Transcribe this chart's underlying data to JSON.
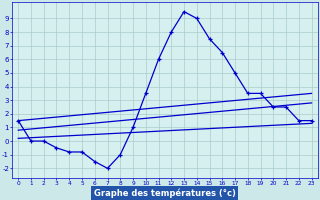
{
  "title": "Graphe des températures (°c)",
  "background_color": "#cce8e8",
  "plot_bg_color": "#d6f0f0",
  "grid_color": "#aacccc",
  "line_color": "#0000cc",
  "xlabel_bg": "#2255aa",
  "xlabel_fg": "#ffffff",
  "xlim": [
    -0.5,
    23.5
  ],
  "ylim": [
    -2.7,
    10.2
  ],
  "yticks": [
    -2,
    -1,
    0,
    1,
    2,
    3,
    4,
    5,
    6,
    7,
    8,
    9
  ],
  "xticks": [
    0,
    1,
    2,
    3,
    4,
    5,
    6,
    7,
    8,
    9,
    10,
    11,
    12,
    13,
    14,
    15,
    16,
    17,
    18,
    19,
    20,
    21,
    22,
    23
  ],
  "main_series": {
    "x": [
      0,
      1,
      2,
      3,
      4,
      5,
      6,
      7,
      8,
      9,
      10,
      11,
      12,
      13,
      14,
      15,
      16,
      17,
      18,
      19,
      20,
      21,
      22,
      23
    ],
    "y": [
      1.5,
      0.0,
      0.0,
      -0.5,
      -0.8,
      -0.8,
      -1.5,
      -2.0,
      -1.0,
      1.0,
      3.5,
      6.0,
      8.0,
      9.5,
      9.0,
      7.5,
      6.5,
      5.0,
      3.5,
      3.5,
      2.5,
      2.5,
      1.5,
      1.5
    ]
  },
  "ref_lines": [
    {
      "x": [
        0,
        23
      ],
      "y": [
        1.5,
        3.5
      ]
    },
    {
      "x": [
        0,
        23
      ],
      "y": [
        0.8,
        2.8
      ]
    },
    {
      "x": [
        0,
        23
      ],
      "y": [
        0.2,
        1.3
      ]
    }
  ]
}
